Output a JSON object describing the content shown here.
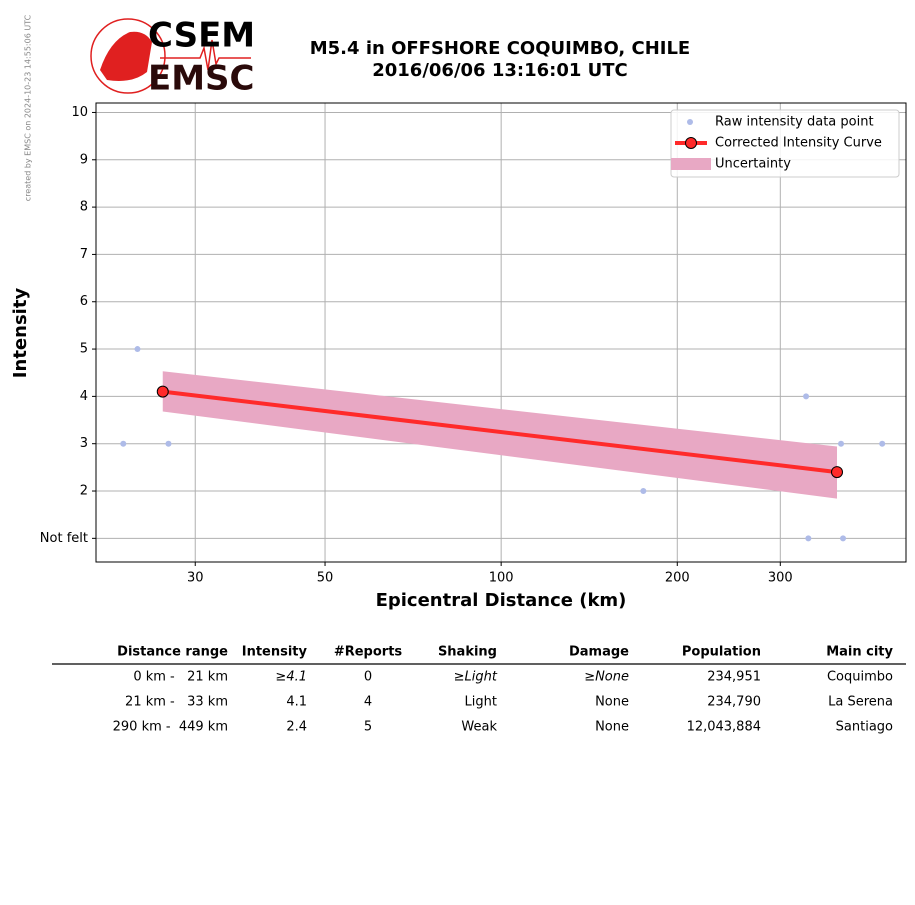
{
  "chart_data": {
    "type": "line",
    "title": "M5.4 in OFFSHORE COQUIMBO, CHILE",
    "subtitle": "2016/06/06 13:16:01 UTC",
    "x_label": "Epicentral Distance (km)",
    "y_label": "Intensity",
    "xscale": "log",
    "xlim": [
      20.3,
      492
    ],
    "xticks": [
      30,
      50,
      100,
      200,
      300
    ],
    "ylim": [
      0.5,
      10.2
    ],
    "yticks": [
      {
        "value": 1,
        "label": "Not felt"
      },
      2,
      3,
      4,
      5,
      6,
      7,
      8,
      9,
      10
    ],
    "grid": true,
    "legend": "upper right",
    "series": [
      {
        "name": "Raw intensity data point",
        "type": "scatter",
        "color": "#aebbe8",
        "x": [
          23.9,
          22.6,
          27.0,
          175,
          332,
          335,
          381,
          384,
          448
        ],
        "values": [
          5,
          3,
          3,
          2,
          4,
          1,
          3,
          1,
          3
        ]
      },
      {
        "name": "Corrected Intensity Curve",
        "type": "line",
        "color": "#ff2a2a",
        "x": [
          26.4,
          375
        ],
        "values": [
          4.1,
          2.4
        ]
      },
      {
        "name": "Uncertainty",
        "type": "band",
        "color": "#e8a8c4",
        "x": [
          26.4,
          375
        ],
        "lower": [
          3.68,
          1.84
        ],
        "upper": [
          4.53,
          2.94
        ]
      }
    ]
  },
  "logo": {
    "top": "CSEM",
    "bottom": "EMSC"
  },
  "credit": "created by EMSC on 2024-10-23 14:55:06 UTC",
  "table": {
    "headers": [
      "Distance range",
      "Intensity",
      "#Reports",
      "Shaking",
      "Damage",
      "Population",
      "Main city"
    ],
    "rows": [
      [
        "0 km -   21 km",
        "≥4.1",
        "0",
        "≥Light",
        "≥None",
        "234,951",
        "Coquimbo"
      ],
      [
        "21 km -   33 km",
        "4.1",
        "4",
        "Light",
        "None",
        "234,790",
        "La Serena"
      ],
      [
        "290 km -  449 km",
        "2.4",
        "5",
        "Weak",
        "None",
        "12,043,884",
        "Santiago"
      ]
    ]
  }
}
